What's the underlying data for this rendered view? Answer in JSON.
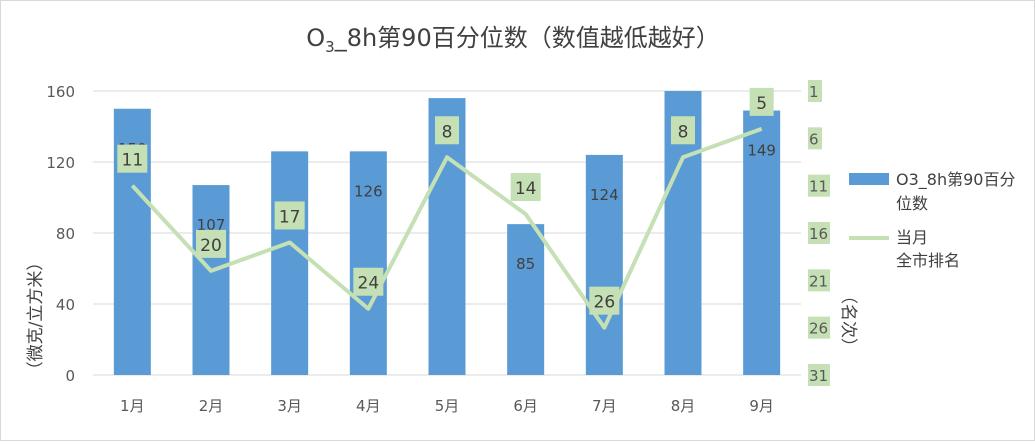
{
  "chart_data": {
    "type": "bar",
    "title_main": "O",
    "title_sub": "3",
    "title_rest": "_8h第90百分位数（数值越低越好）",
    "categories": [
      "1月",
      "2月",
      "3月",
      "4月",
      "5月",
      "6月",
      "7月",
      "8月",
      "9月"
    ],
    "series": [
      {
        "name": "O3_8h第90百分位数",
        "legend_lines": [
          "O3_8h第90百分",
          "位数"
        ],
        "type": "bar",
        "axis": "left",
        "color": "#5b9bd5",
        "values": [
          150,
          107,
          126,
          126,
          156,
          85,
          124,
          160,
          149
        ],
        "labels": [
          "150",
          "107",
          "",
          "126",
          "1 6",
          "85",
          "124",
          "",
          "149"
        ]
      },
      {
        "name": "当月全市排名",
        "legend_lines": [
          "当月",
          "全市排名"
        ],
        "type": "line",
        "axis": "right",
        "color": "#c5e0b4",
        "values": [
          11,
          20,
          17,
          24,
          8,
          14,
          26,
          8,
          5
        ],
        "labels": [
          "11",
          "20",
          "17",
          "24",
          "8",
          "14",
          "26",
          "8",
          "5"
        ]
      }
    ],
    "y_left": {
      "label": "（微克/立方米）",
      "ticks": [
        "0",
        "40",
        "80",
        "120",
        "160"
      ],
      "min": 0,
      "max": 160
    },
    "y_right": {
      "label": "（名次）",
      "ticks": [
        "1",
        "6",
        "11",
        "16",
        "21",
        "26",
        "31"
      ],
      "min": 1,
      "max": 31,
      "reversed": true
    },
    "grid": true,
    "legend_position": "right"
  }
}
